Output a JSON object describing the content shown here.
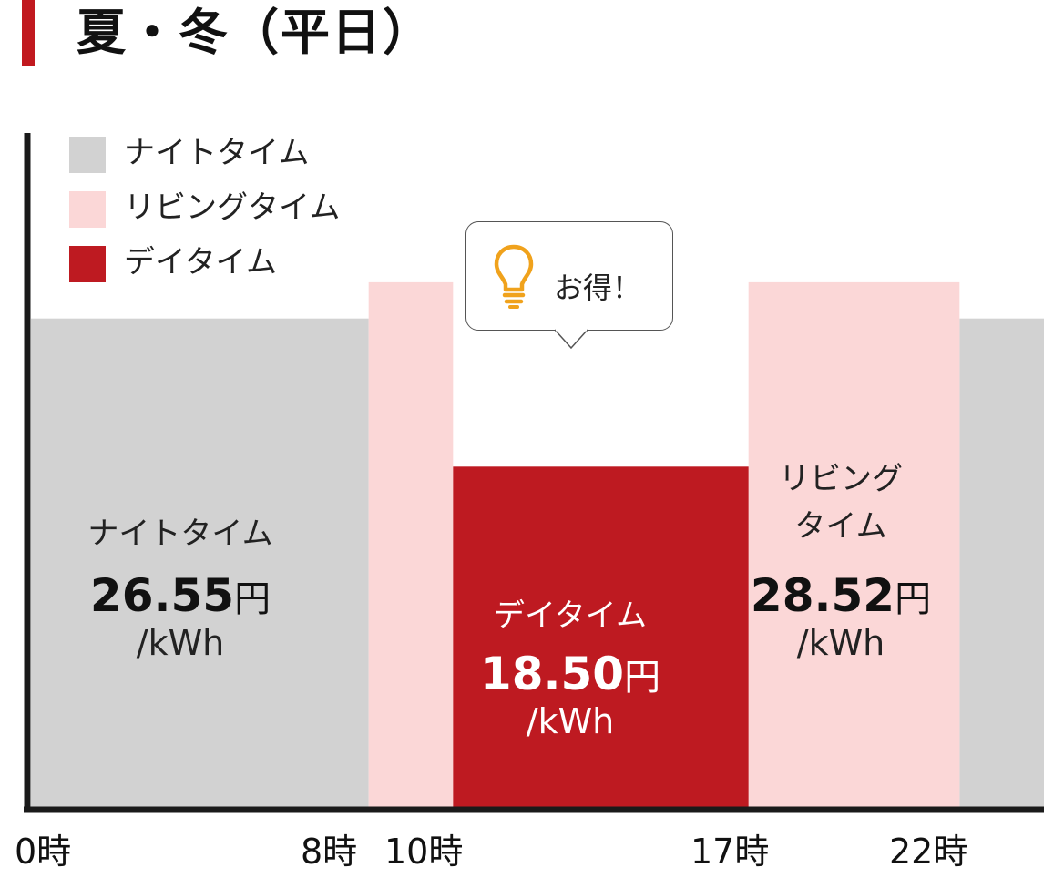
{
  "title": "夏・冬（平日）",
  "colors": {
    "accent": "#c1191f",
    "night": "#d2d2d2",
    "living": "#fbd7d7",
    "day": "#be1a21",
    "axis": "#1a1a1a",
    "bulb": "#f0a21c"
  },
  "legend": [
    {
      "label": "ナイトタイム",
      "color": "#d2d2d2"
    },
    {
      "label": "リビングタイム",
      "color": "#fbd7d7"
    },
    {
      "label": "デイタイム",
      "color": "#be1a21"
    }
  ],
  "callout": {
    "text": "お得！",
    "icon": "lightbulb-icon"
  },
  "band_labels": {
    "night": {
      "name": "ナイトタイム",
      "price": "26.55",
      "yen": "円",
      "unit": "/kWh"
    },
    "day": {
      "name": "デイタイム",
      "price": "18.50",
      "yen": "円",
      "unit": "/kWh"
    },
    "living": {
      "name_line1": "リビング",
      "name_line2": "タイム",
      "price": "28.52",
      "yen": "円",
      "unit": "/kWh"
    }
  },
  "chart_data": {
    "type": "bar",
    "x_ticks": [
      "0時",
      "8時",
      "10時",
      "17時",
      "22時"
    ],
    "xlim": [
      0,
      24
    ],
    "ylim": [
      0,
      30
    ],
    "unit": "円/kWh",
    "series": [
      {
        "name": "ナイトタイム",
        "value": 26.55,
        "spans": [
          [
            0,
            8
          ],
          [
            22,
            24
          ]
        ]
      },
      {
        "name": "リビングタイム",
        "value": 28.52,
        "spans": [
          [
            8,
            10
          ],
          [
            17,
            22
          ]
        ]
      },
      {
        "name": "デイタイム",
        "value": 18.5,
        "spans": [
          [
            10,
            17
          ]
        ]
      }
    ]
  }
}
